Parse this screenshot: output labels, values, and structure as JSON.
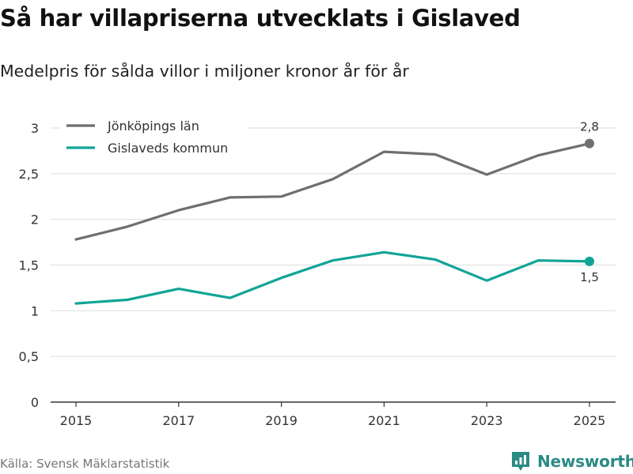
{
  "title": "Så har villapriserna utvecklats i Gislaved",
  "subtitle": "Medelpris för sålda villor i miljoner kronor år för år",
  "source": "Källa: Svensk Mäklarstatistik",
  "brand": {
    "name": "Newsworthy",
    "icon": "newsworthy-logo-icon",
    "color": "#2a8a84"
  },
  "chart_data": {
    "type": "line",
    "title": "Så har villapriserna utvecklats i Gislaved",
    "subtitle": "Medelpris för sålda villor i miljoner kronor år för år",
    "xlabel": "",
    "ylabel": "",
    "x": [
      2015,
      2016,
      2017,
      2018,
      2019,
      2020,
      2021,
      2022,
      2023,
      2024,
      2025
    ],
    "xticks": [
      "2015",
      "2017",
      "2019",
      "2021",
      "2023",
      "2025"
    ],
    "yticks": [
      0,
      0.5,
      1,
      1.5,
      2,
      2.5,
      3
    ],
    "ytick_labels": [
      "0",
      "0,5",
      "1",
      "1,5",
      "2",
      "2,5",
      "3"
    ],
    "ylim": [
      0,
      3
    ],
    "grid": true,
    "legend_position": "top-left",
    "series": [
      {
        "name": "Jönköpings län",
        "color": "#6e6e73",
        "values": [
          1.78,
          1.92,
          2.1,
          2.24,
          2.25,
          2.44,
          2.74,
          2.71,
          2.49,
          2.7,
          2.83
        ],
        "end_label": "2,8"
      },
      {
        "name": "Gislaveds kommun",
        "color": "#11a497",
        "values": [
          1.08,
          1.12,
          1.24,
          1.14,
          1.36,
          1.55,
          1.64,
          1.56,
          1.33,
          1.55,
          1.54
        ],
        "end_label": "1,5"
      }
    ]
  }
}
